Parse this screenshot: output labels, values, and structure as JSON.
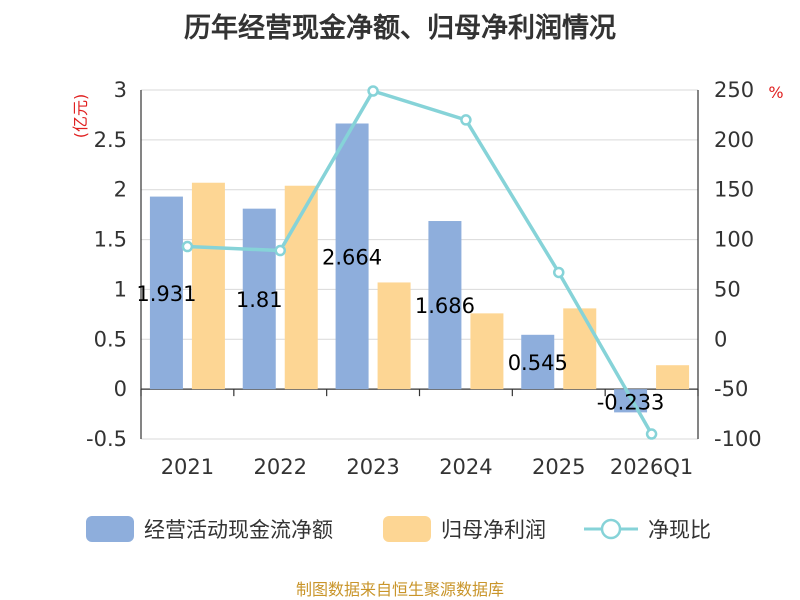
{
  "chart_data": {
    "type": "bar+line",
    "title": "历年经营现金净额、归母净利润情况",
    "categories": [
      "2021",
      "2022",
      "2023",
      "2024",
      "2025",
      "2026Q1"
    ],
    "left_axis": {
      "unit": "(亿元)",
      "min": -0.5,
      "max": 3,
      "ticks": [
        "-0.5",
        "0",
        "0.5",
        "1",
        "1.5",
        "2",
        "2.5",
        "3"
      ]
    },
    "right_axis": {
      "unit": "%",
      "min": -100,
      "max": 250,
      "ticks": [
        "-100",
        "-50",
        "0",
        "50",
        "100",
        "150",
        "200",
        "250"
      ]
    },
    "series": [
      {
        "name": "经营活动现金流净额",
        "type": "bar",
        "axis": "left",
        "color": "#8eaedc",
        "values": [
          1.931,
          1.81,
          2.664,
          1.686,
          0.545,
          -0.233
        ],
        "labels": [
          "1.931",
          "1.81",
          "2.664",
          "1.686",
          "0.545",
          "-0.233"
        ]
      },
      {
        "name": "归母净利润",
        "type": "bar",
        "axis": "left",
        "color": "#fdd694",
        "values": [
          2.07,
          2.04,
          1.07,
          0.76,
          0.81,
          0.24
        ]
      },
      {
        "name": "净现比",
        "type": "line",
        "axis": "right",
        "color": "#86d3d8",
        "values": [
          93,
          89,
          249,
          220,
          67,
          -95
        ]
      }
    ]
  },
  "footer": {
    "source": "制图数据来自恒生聚源数据库"
  }
}
